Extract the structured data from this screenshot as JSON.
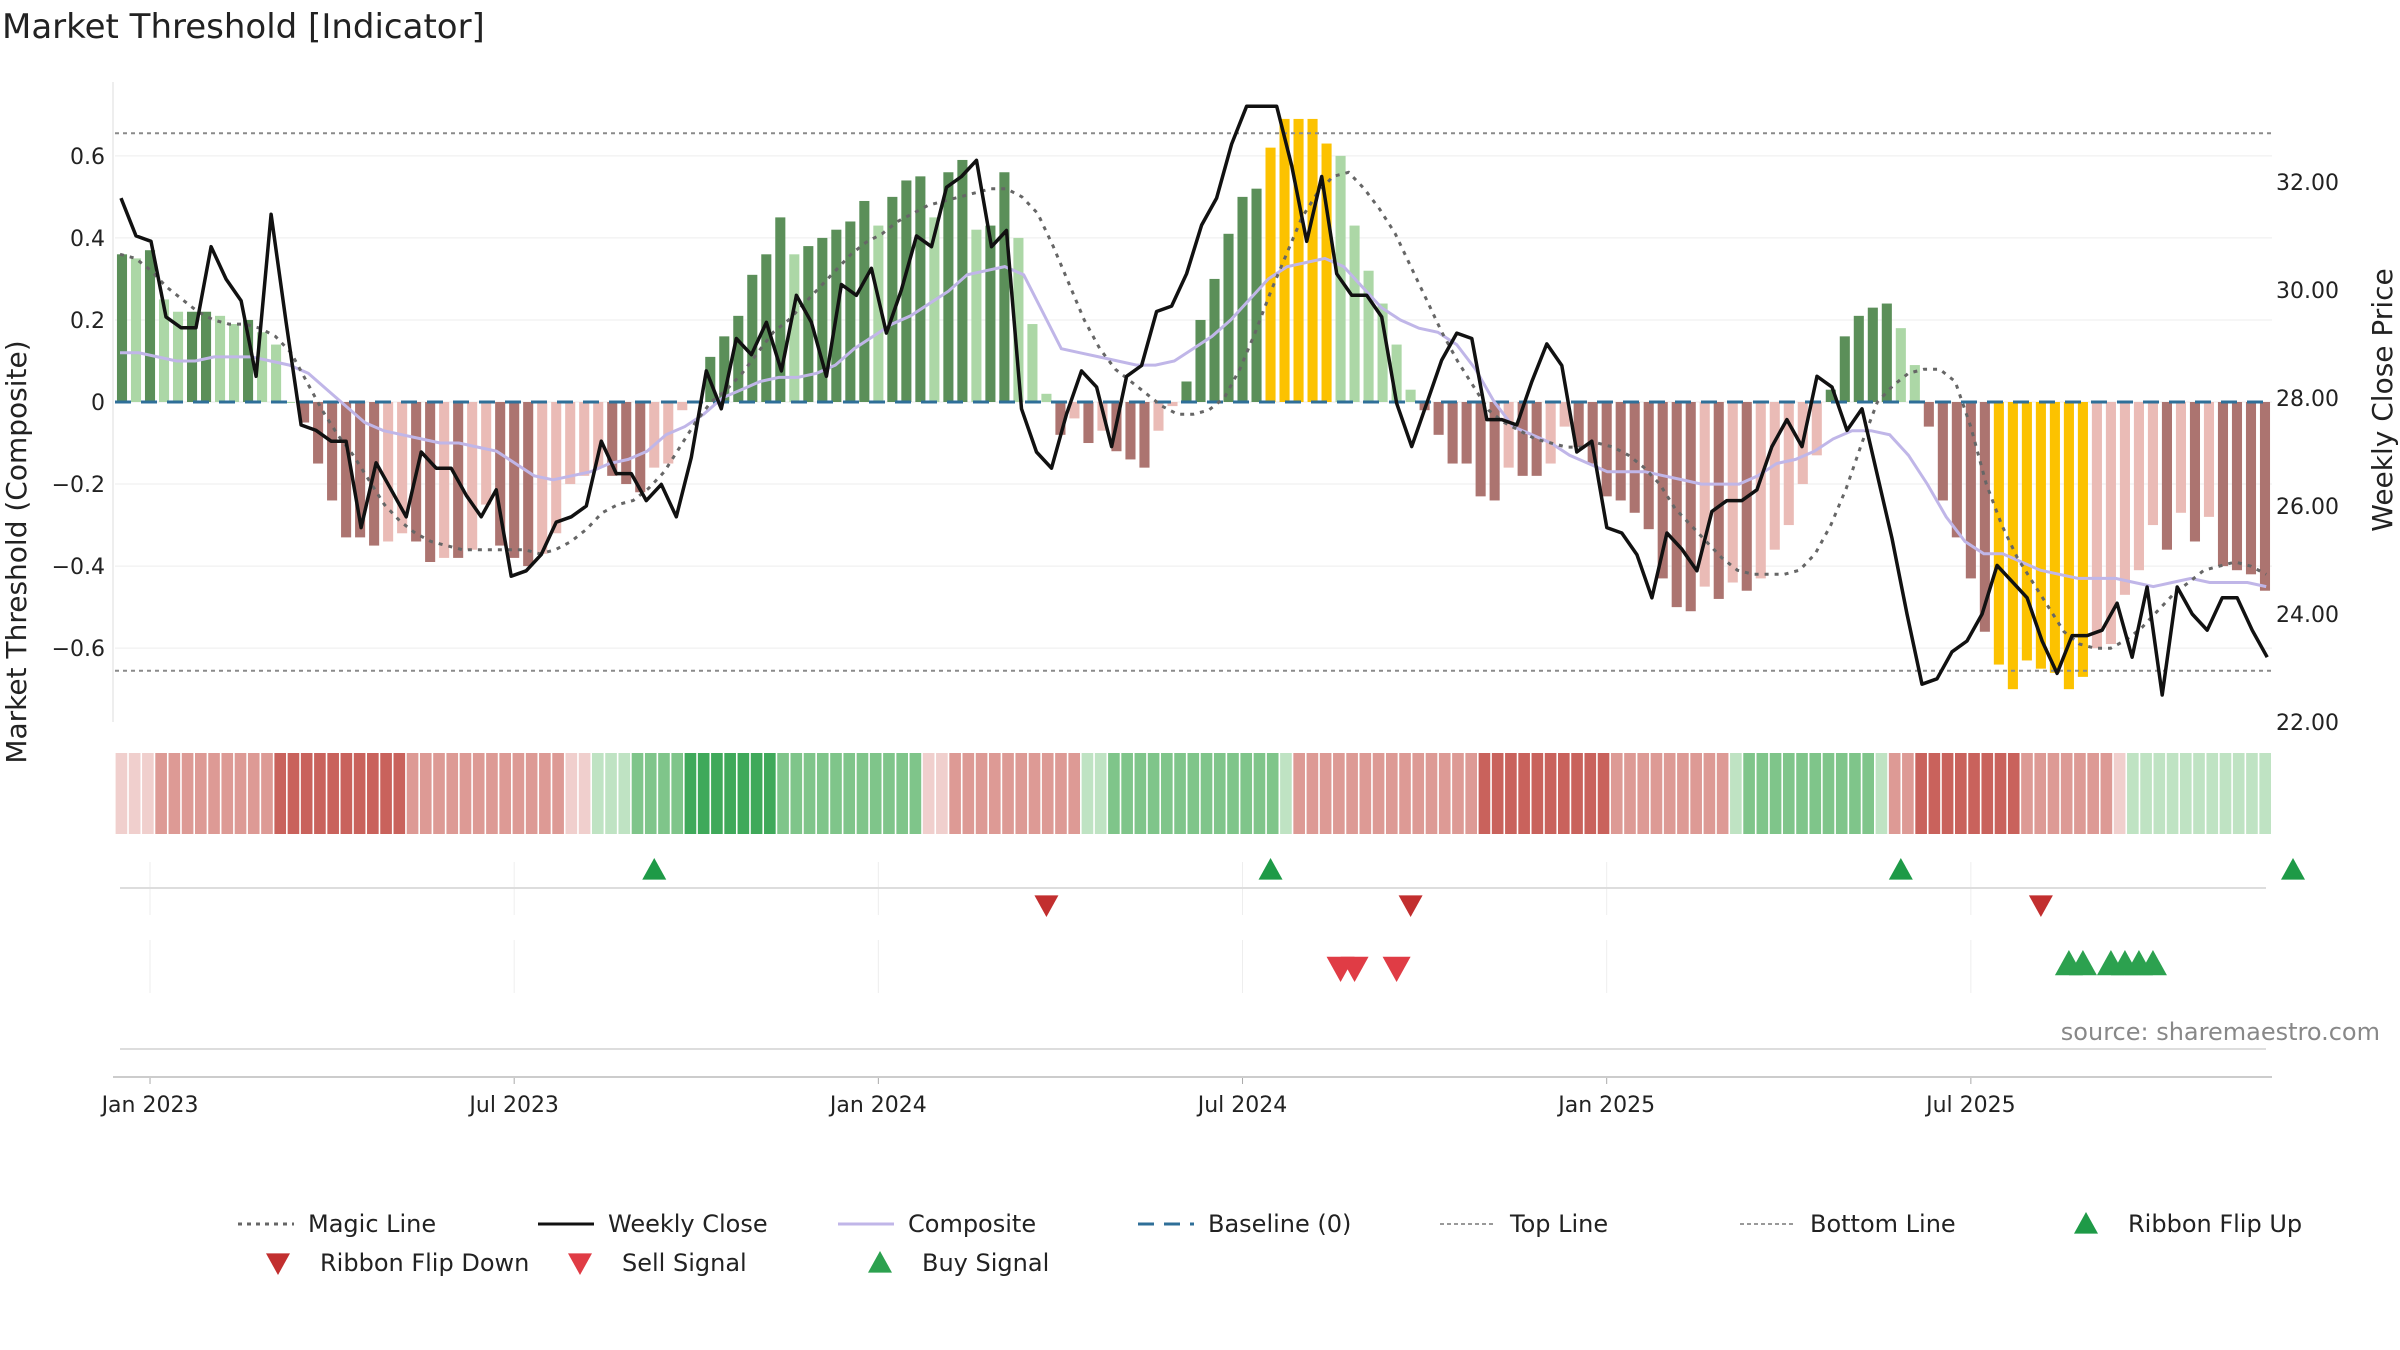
{
  "chart_data": {
    "type": "bar",
    "title": "Market Threshold [Indicator]",
    "ylabel": "Market Threshold (Composite)",
    "y2label": "Weekly Close Price",
    "ylim": [
      -0.78,
      0.78
    ],
    "y2lim": [
      22.0,
      33.85
    ],
    "yticks": [
      "0.6",
      "0.4",
      "0.2",
      "0",
      "−0.2",
      "−0.4",
      "−0.6"
    ],
    "ytick_values": [
      0.6,
      0.4,
      0.2,
      0,
      -0.2,
      -0.4,
      -0.6
    ],
    "y2ticks": [
      "32.00",
      "30.00",
      "28.00",
      "26.00",
      "24.00",
      "22.00"
    ],
    "y2tick_values": [
      32,
      30,
      28,
      26,
      24,
      22
    ],
    "xticks": [
      "Jan 2023",
      "Jul 2023",
      "Jan 2024",
      "Jul 2024",
      "Jan 2025",
      "Jul 2025"
    ],
    "xtick_weeks": [
      0,
      26,
      52,
      78,
      104,
      130
    ],
    "week_start_offset": -2,
    "top_line": 0.655,
    "bottom_line": -0.655,
    "source": "source: sharemaestro.com",
    "bars": [
      0.36,
      0.35,
      0.37,
      0.25,
      0.22,
      0.22,
      0.22,
      0.21,
      0.19,
      0.2,
      0.17,
      0.14,
      0.0,
      -0.05,
      -0.15,
      -0.24,
      -0.33,
      -0.33,
      -0.35,
      -0.34,
      -0.32,
      -0.34,
      -0.39,
      -0.38,
      -0.38,
      -0.36,
      -0.25,
      -0.35,
      -0.38,
      -0.4,
      -0.37,
      -0.32,
      -0.2,
      -0.18,
      -0.16,
      -0.18,
      -0.2,
      -0.22,
      -0.16,
      -0.15,
      -0.02,
      0.0,
      0.11,
      0.16,
      0.21,
      0.31,
      0.36,
      0.45,
      0.36,
      0.38,
      0.4,
      0.42,
      0.44,
      0.49,
      0.43,
      0.5,
      0.54,
      0.55,
      0.45,
      0.56,
      0.59,
      0.42,
      0.43,
      0.56,
      0.4,
      0.19,
      0.02,
      -0.08,
      -0.04,
      -0.1,
      -0.07,
      -0.12,
      -0.14,
      -0.16,
      -0.07,
      -0.01,
      0.05,
      0.2,
      0.3,
      0.41,
      0.5,
      0.52,
      0.62,
      0.69,
      0.69,
      0.69,
      0.63,
      0.6,
      0.43,
      0.32,
      0.24,
      0.14,
      0.03,
      -0.02,
      -0.08,
      -0.15,
      -0.15,
      -0.23,
      -0.24,
      -0.16,
      -0.18,
      -0.18,
      -0.15,
      -0.06,
      -0.11,
      -0.15,
      -0.23,
      -0.24,
      -0.27,
      -0.31,
      -0.43,
      -0.5,
      -0.51,
      -0.45,
      -0.48,
      -0.44,
      -0.46,
      -0.43,
      -0.36,
      -0.3,
      -0.2,
      -0.13,
      0.03,
      0.16,
      0.21,
      0.23,
      0.24,
      0.18,
      0.09,
      -0.06,
      -0.24,
      -0.33,
      -0.43,
      -0.56,
      -0.64,
      -0.7,
      -0.63,
      -0.65,
      -0.66,
      -0.7,
      -0.67,
      -0.6,
      -0.59,
      -0.47,
      -0.41,
      -0.3,
      -0.36,
      -0.27,
      -0.34,
      -0.28,
      -0.4,
      -0.41,
      -0.42,
      -0.46
    ],
    "close": [
      31.7,
      31.0,
      30.9,
      29.5,
      29.3,
      29.3,
      30.8,
      30.2,
      29.8,
      28.4,
      31.4,
      29.4,
      27.5,
      27.4,
      27.2,
      27.2,
      25.6,
      26.8,
      26.3,
      25.8,
      27.0,
      26.7,
      26.7,
      26.2,
      25.8,
      26.3,
      24.7,
      24.8,
      25.1,
      25.7,
      25.8,
      26.0,
      27.2,
      26.6,
      26.6,
      26.1,
      26.4,
      25.8,
      26.9,
      28.5,
      27.8,
      29.1,
      28.8,
      29.4,
      28.5,
      29.9,
      29.4,
      28.4,
      30.1,
      29.9,
      30.4,
      29.2,
      30.0,
      31.0,
      30.8,
      31.9,
      32.1,
      32.4,
      30.8,
      31.1,
      27.8,
      27.0,
      26.7,
      27.7,
      28.5,
      28.2,
      27.1,
      28.4,
      28.6,
      29.6,
      29.7,
      30.3,
      31.2,
      31.7,
      32.7,
      33.4,
      33.4,
      33.4,
      32.3,
      30.9,
      32.1,
      30.3,
      29.9,
      29.9,
      29.5,
      27.9,
      27.1,
      27.9,
      28.7,
      29.2,
      29.1,
      27.6,
      27.6,
      27.5,
      28.3,
      29.0,
      28.6,
      27.0,
      27.2,
      25.6,
      25.5,
      25.1,
      24.3,
      25.5,
      25.2,
      24.8,
      25.9,
      26.1,
      26.1,
      26.3,
      27.1,
      27.6,
      27.1,
      28.4,
      28.2,
      27.4,
      27.8,
      26.6,
      25.4,
      24.0,
      22.7,
      22.8,
      23.3,
      23.5,
      24.0,
      24.9,
      24.6,
      24.3,
      23.5,
      22.9,
      23.6,
      23.6,
      23.7,
      24.2,
      23.2,
      24.5,
      22.5,
      24.5,
      24.0,
      23.7,
      24.3,
      24.3,
      23.7,
      23.2
    ],
    "magic": [
      0.36,
      0.35,
      0.32,
      0.28,
      0.25,
      0.22,
      0.2,
      0.19,
      0.19,
      0.18,
      0.16,
      0.12,
      0.05,
      -0.02,
      -0.08,
      -0.13,
      -0.19,
      -0.25,
      -0.29,
      -0.32,
      -0.34,
      -0.35,
      -0.36,
      -0.36,
      -0.36,
      -0.36,
      -0.36,
      -0.37,
      -0.36,
      -0.34,
      -0.31,
      -0.27,
      -0.25,
      -0.24,
      -0.21,
      -0.17,
      -0.11,
      -0.05,
      0.0,
      0.03,
      0.07,
      0.12,
      0.17,
      0.2,
      0.24,
      0.28,
      0.32,
      0.36,
      0.39,
      0.41,
      0.44,
      0.46,
      0.48,
      0.49,
      0.5,
      0.51,
      0.52,
      0.52,
      0.5,
      0.46,
      0.38,
      0.29,
      0.2,
      0.13,
      0.08,
      0.05,
      0.02,
      -0.01,
      -0.03,
      -0.03,
      -0.02,
      0.01,
      0.08,
      0.17,
      0.27,
      0.36,
      0.45,
      0.51,
      0.55,
      0.56,
      0.52,
      0.47,
      0.41,
      0.33,
      0.25,
      0.17,
      0.1,
      0.04,
      -0.02,
      -0.05,
      -0.07,
      -0.09,
      -0.1,
      -0.11,
      -0.11,
      -0.1,
      -0.11,
      -0.13,
      -0.16,
      -0.2,
      -0.26,
      -0.3,
      -0.34,
      -0.38,
      -0.41,
      -0.42,
      -0.42,
      -0.42,
      -0.41,
      -0.37,
      -0.3,
      -0.21,
      -0.1,
      0.0,
      0.04,
      0.07,
      0.08,
      0.08,
      0.05,
      -0.06,
      -0.2,
      -0.3,
      -0.38,
      -0.44,
      -0.5,
      -0.56,
      -0.59,
      -0.6,
      -0.6,
      -0.58,
      -0.55,
      -0.51,
      -0.47,
      -0.44,
      -0.41,
      -0.4,
      -0.39,
      -0.4,
      -0.42
    ],
    "composite": [
      0.12,
      0.12,
      0.11,
      0.1,
      0.1,
      0.11,
      0.11,
      0.11,
      0.1,
      0.09,
      0.07,
      0.03,
      -0.01,
      -0.05,
      -0.07,
      -0.08,
      -0.09,
      -0.1,
      -0.1,
      -0.11,
      -0.12,
      -0.15,
      -0.18,
      -0.19,
      -0.18,
      -0.17,
      -0.15,
      -0.14,
      -0.12,
      -0.08,
      -0.06,
      -0.03,
      0.01,
      0.03,
      0.05,
      0.06,
      0.06,
      0.07,
      0.09,
      0.13,
      0.16,
      0.19,
      0.21,
      0.24,
      0.27,
      0.31,
      0.32,
      0.33,
      0.31,
      0.22,
      0.13,
      0.12,
      0.11,
      0.1,
      0.09,
      0.09,
      0.1,
      0.13,
      0.16,
      0.2,
      0.25,
      0.3,
      0.33,
      0.34,
      0.35,
      0.33,
      0.28,
      0.23,
      0.2,
      0.18,
      0.17,
      0.14,
      0.08,
      0.0,
      -0.06,
      -0.08,
      -0.1,
      -0.13,
      -0.15,
      -0.17,
      -0.17,
      -0.17,
      -0.18,
      -0.19,
      -0.2,
      -0.2,
      -0.2,
      -0.18,
      -0.15,
      -0.14,
      -0.12,
      -0.09,
      -0.07,
      -0.07,
      -0.08,
      -0.13,
      -0.2,
      -0.28,
      -0.34,
      -0.37,
      -0.37,
      -0.39,
      -0.41,
      -0.42,
      -0.43,
      -0.43,
      -0.43,
      -0.44,
      -0.45,
      -0.44,
      -0.43,
      -0.44,
      -0.44,
      -0.44,
      -0.45
    ]
  },
  "ribbon": [
    -1,
    -1,
    -1,
    -2,
    -2,
    -2,
    -2,
    -2,
    -2,
    -2,
    -2,
    -2,
    -3,
    -3,
    -3,
    -3,
    -3,
    -3,
    -3,
    -3,
    -3,
    -3,
    -2,
    -2,
    -2,
    -2,
    -2,
    -2,
    -2,
    -2,
    -2,
    -2,
    -2,
    -2,
    -1,
    -1,
    1,
    1,
    1,
    2,
    2,
    2,
    2,
    3,
    3,
    3,
    3,
    3,
    3,
    3,
    2,
    2,
    2,
    2,
    2,
    2,
    2,
    2,
    2,
    2,
    2,
    -1,
    -1,
    -2,
    -2,
    -2,
    -2,
    -2,
    -2,
    -2,
    -2,
    -2,
    -2,
    1,
    1,
    2,
    2,
    2,
    2,
    2,
    2,
    2,
    2,
    2,
    2,
    2,
    2,
    2,
    1,
    -2,
    -2,
    -2,
    -2,
    -2,
    -2,
    -2,
    -2,
    -2,
    -2,
    -2,
    -2,
    -2,
    -2,
    -3,
    -3,
    -3,
    -3,
    -3,
    -3,
    -3,
    -3,
    -3,
    -3,
    -2,
    -2,
    -2,
    -2,
    -2,
    -2,
    -2,
    -2,
    -2,
    1,
    2,
    2,
    2,
    2,
    2,
    2,
    2,
    2,
    2,
    2,
    1,
    -2,
    -2,
    -3,
    -3,
    -3,
    -3,
    -3,
    -3,
    -3,
    -3,
    -2,
    -2,
    -2,
    -2,
    -2,
    -2,
    -2,
    -1,
    1,
    1,
    1,
    1,
    1,
    1,
    1,
    1,
    1,
    1,
    1
  ],
  "signals": {
    "flip_up": [
      36,
      80,
      125,
      153
    ],
    "flip_down": [
      64,
      90,
      135
    ],
    "sell": [
      85,
      86,
      89
    ],
    "buy": [
      137,
      138,
      140,
      141,
      142,
      143
    ]
  },
  "legend": [
    {
      "label": "Magic Line",
      "kind": "dotted",
      "color": "#666666"
    },
    {
      "label": "Weekly Close",
      "kind": "solid",
      "color": "#111111"
    },
    {
      "label": "Composite",
      "kind": "solid",
      "color": "#c0b6e8"
    },
    {
      "label": "Baseline (0)",
      "kind": "dashed",
      "color": "#2f6f98"
    },
    {
      "label": "Top Line",
      "kind": "fine",
      "color": "#999999"
    },
    {
      "label": "Bottom Line",
      "kind": "fine",
      "color": "#999999"
    },
    {
      "label": "Ribbon Flip Up",
      "kind": "tri-up",
      "color": "#1e9a47"
    },
    {
      "label": "Ribbon Flip Down",
      "kind": "tri-down",
      "color": "#c22f2f"
    },
    {
      "label": "Sell Signal",
      "kind": "tri-down",
      "color": "#e03c45"
    },
    {
      "label": "Buy Signal",
      "kind": "tri-up",
      "color": "#2ca14f"
    }
  ],
  "colors": {
    "bar_pos_light": "#acd7a6",
    "bar_pos_dark": "#5b8f59",
    "bar_neg_light": "#eabbb6",
    "bar_neg_dark": "#ac7470",
    "bar_extreme": "#fcc200",
    "ribbon_green": [
      "#bfe3c3",
      "#7fc58a",
      "#3fa95a"
    ],
    "ribbon_red": [
      "#f0cfcd",
      "#dd9a95",
      "#c9625c"
    ]
  }
}
